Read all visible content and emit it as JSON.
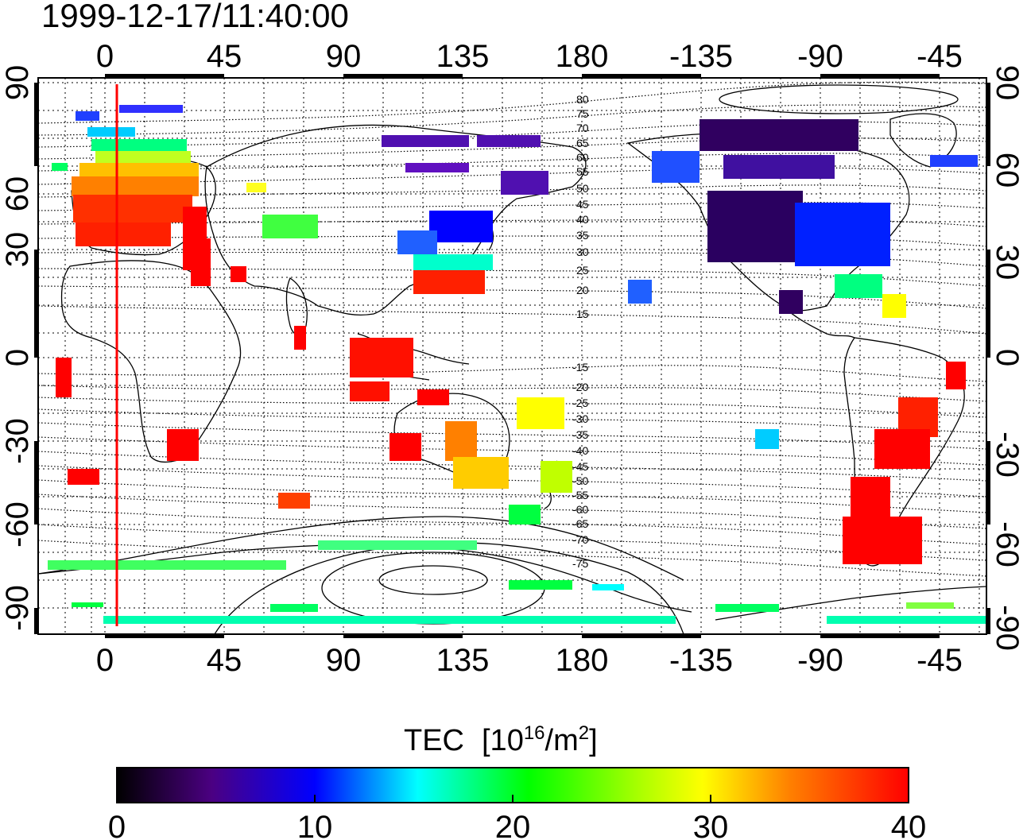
{
  "timestamp": "1999-12-17/11:40:00",
  "x_ticks": [
    "0",
    "45",
    "90",
    "135",
    "180",
    "-135",
    "-90",
    "-45"
  ],
  "y_ticks": [
    "90",
    "60",
    "30",
    "0",
    "-30",
    "-60",
    "-90"
  ],
  "contour_labels": [
    "80",
    "75",
    "70",
    "65",
    "60",
    "55",
    "50",
    "45",
    "40",
    "35",
    "30",
    "25",
    "20",
    "15",
    "-15",
    "-20",
    "-25",
    "-30",
    "-35",
    "-40",
    "-45",
    "-50",
    "-55",
    "-60",
    "-65",
    "-70",
    "-75"
  ],
  "colorbar": {
    "title": "TEC",
    "units_prefix": "[10",
    "units_exp": "16",
    "units_mid": "/m",
    "units_exp2": "2",
    "units_suffix": "]",
    "ticks": [
      "0",
      "10",
      "20",
      "30",
      "40"
    ],
    "min": 0,
    "max": 40,
    "colors": [
      "#000000",
      "#6a00c8",
      "#0000ff",
      "#00ffff",
      "#00ff00",
      "#ffff00",
      "#ff8000",
      "#ff0000"
    ]
  },
  "marker_longitude": 5
}
